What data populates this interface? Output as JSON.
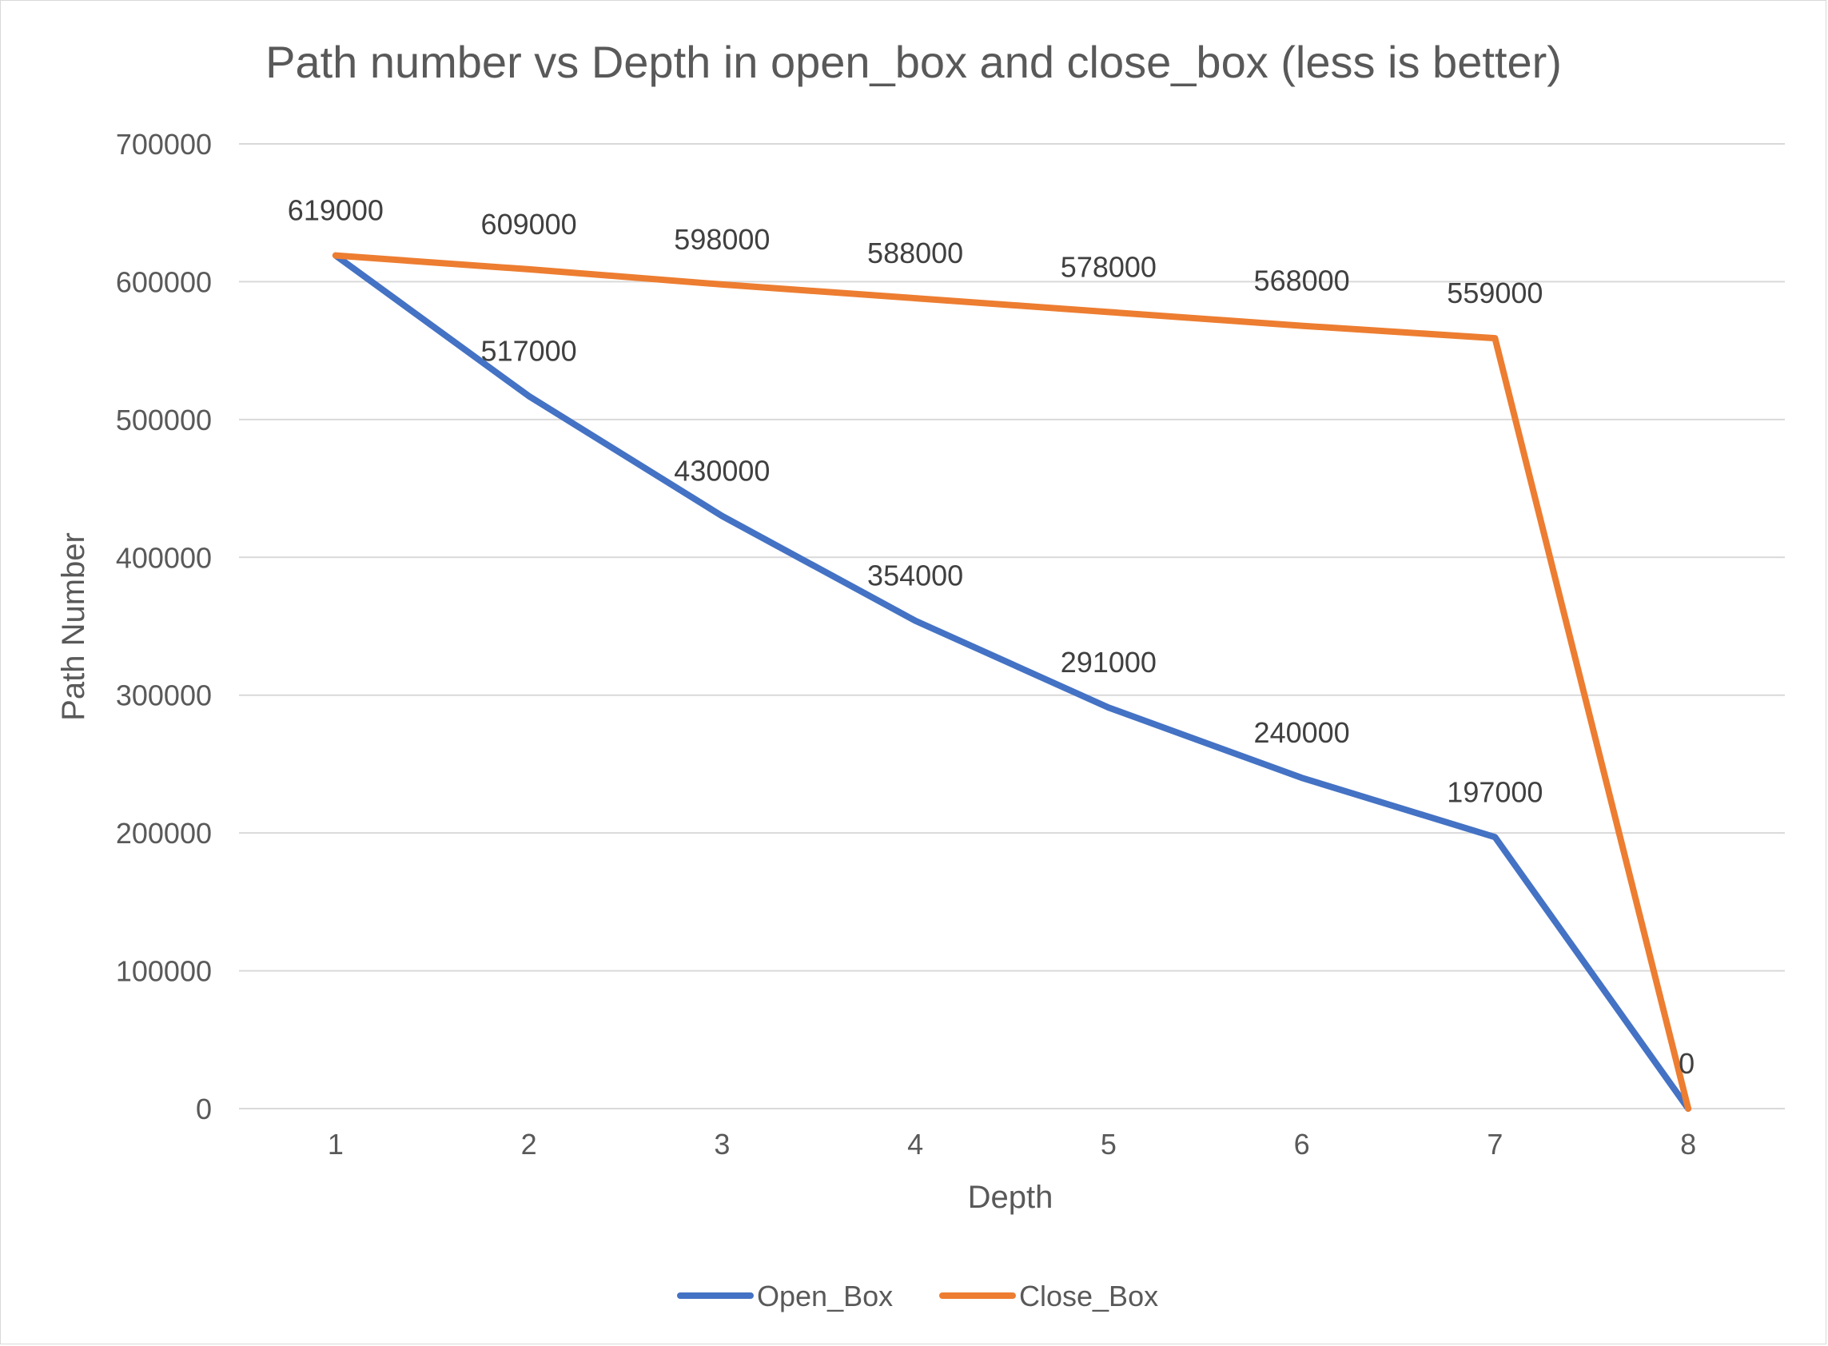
{
  "chart_data": {
    "type": "line",
    "title": "Path number vs Depth in open_box and close_box (less is better)",
    "xlabel": "Depth",
    "ylabel": "Path Number",
    "categories": [
      "1",
      "2",
      "3",
      "4",
      "5",
      "6",
      "7",
      "8"
    ],
    "ylim": [
      0,
      700000
    ],
    "yticks": [
      "0",
      "100000",
      "200000",
      "300000",
      "400000",
      "500000",
      "600000",
      "700000"
    ],
    "grid": true,
    "legend_position": "bottom",
    "series": [
      {
        "name": "Open_Box",
        "color": "#4472C4",
        "values": [
          619000,
          517000,
          430000,
          354000,
          291000,
          240000,
          197000,
          0
        ],
        "labels": [
          "",
          "517000",
          "430000",
          "354000",
          "291000",
          "240000",
          "197000",
          ""
        ]
      },
      {
        "name": "Close_Box",
        "color": "#ED7D31",
        "values": [
          619000,
          609000,
          598000,
          588000,
          578000,
          568000,
          559000,
          0
        ],
        "labels": [
          "619000",
          "609000",
          "598000",
          "588000",
          "578000",
          "568000",
          "559000",
          "0"
        ]
      }
    ]
  }
}
